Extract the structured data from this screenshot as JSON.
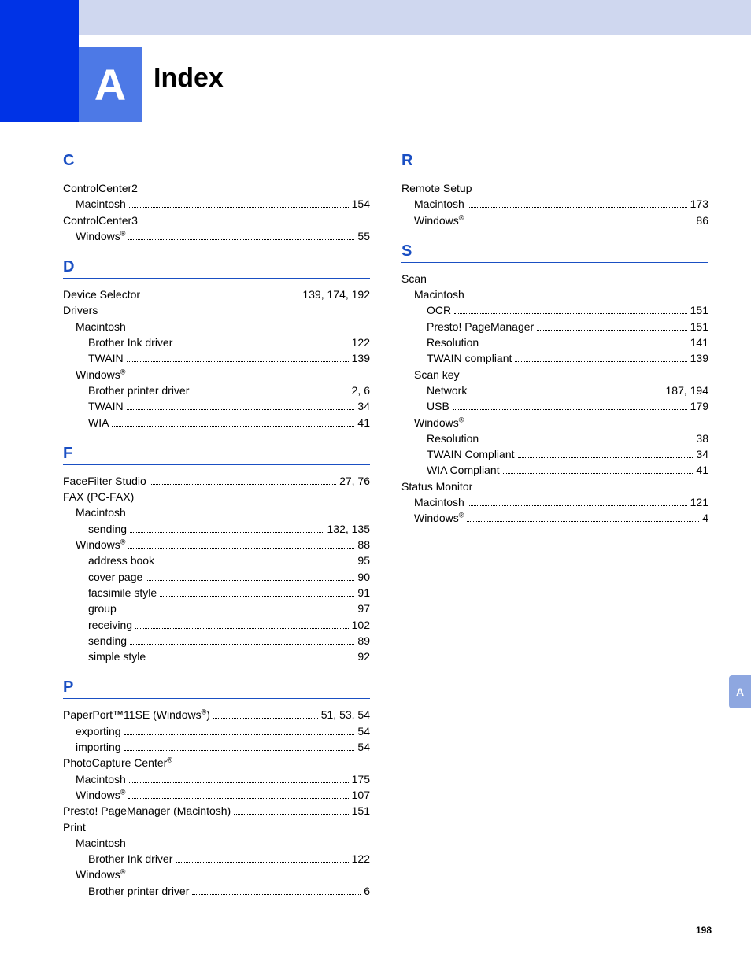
{
  "header": {
    "letter": "A",
    "title": "Index"
  },
  "pageNumber": "198",
  "thumbTab": "A",
  "left": [
    {
      "type": "section",
      "letter": "C"
    },
    {
      "lvl": 0,
      "label": "ControlCenter2",
      "pages": "",
      "noline": true
    },
    {
      "lvl": 1,
      "label": "Macintosh",
      "pages": "154"
    },
    {
      "lvl": 0,
      "label": "ControlCenter3",
      "pages": "",
      "noline": true
    },
    {
      "lvl": 1,
      "label": "Windows",
      "sup": "®",
      "pages": "55"
    },
    {
      "type": "section",
      "letter": "D"
    },
    {
      "lvl": 0,
      "label": "Device Selector",
      "pages": "139, 174, 192"
    },
    {
      "lvl": 0,
      "label": "Drivers",
      "pages": "",
      "noline": true
    },
    {
      "lvl": 1,
      "label": "Macintosh",
      "pages": "",
      "noline": true
    },
    {
      "lvl": 2,
      "label": "Brother Ink driver",
      "pages": "122"
    },
    {
      "lvl": 2,
      "label": "TWAIN",
      "pages": "139"
    },
    {
      "lvl": 1,
      "label": "Windows",
      "sup": "®",
      "pages": "",
      "noline": true
    },
    {
      "lvl": 2,
      "label": "Brother printer driver",
      "pages": "2, 6"
    },
    {
      "lvl": 2,
      "label": "TWAIN",
      "pages": "34"
    },
    {
      "lvl": 2,
      "label": "WIA",
      "pages": "41"
    },
    {
      "type": "section",
      "letter": "F"
    },
    {
      "lvl": 0,
      "label": "FaceFilter Studio",
      "pages": "27, 76"
    },
    {
      "lvl": 0,
      "label": "FAX (PC-FAX)",
      "pages": "",
      "noline": true
    },
    {
      "lvl": 1,
      "label": "Macintosh",
      "pages": "",
      "noline": true
    },
    {
      "lvl": 2,
      "label": "sending",
      "pages": "132, 135"
    },
    {
      "lvl": 1,
      "label": "Windows",
      "sup": "®",
      "pages": "88"
    },
    {
      "lvl": 2,
      "label": "address book",
      "pages": "95"
    },
    {
      "lvl": 2,
      "label": "cover page",
      "pages": "90"
    },
    {
      "lvl": 2,
      "label": "facsimile style",
      "pages": "91"
    },
    {
      "lvl": 2,
      "label": "group",
      "pages": "97"
    },
    {
      "lvl": 2,
      "label": "receiving",
      "pages": "102"
    },
    {
      "lvl": 2,
      "label": "sending",
      "pages": "89"
    },
    {
      "lvl": 2,
      "label": "simple style",
      "pages": "92"
    },
    {
      "type": "section",
      "letter": "P"
    },
    {
      "lvl": 0,
      "label": "PaperPort™11SE (Windows",
      "sup": "®",
      "after": ")",
      "pages": "51, 53, 54"
    },
    {
      "lvl": 1,
      "label": "exporting",
      "pages": "54"
    },
    {
      "lvl": 1,
      "label": "importing",
      "pages": "54"
    },
    {
      "lvl": 0,
      "label": "PhotoCapture Center",
      "sup": "®",
      "pages": "",
      "noline": true
    },
    {
      "lvl": 1,
      "label": "Macintosh",
      "pages": "175"
    },
    {
      "lvl": 1,
      "label": "Windows",
      "sup": "®",
      "pages": "107"
    },
    {
      "lvl": 0,
      "label": "Presto! PageManager (Macintosh)",
      "pages": "151"
    },
    {
      "lvl": 0,
      "label": "Print",
      "pages": "",
      "noline": true
    },
    {
      "lvl": 1,
      "label": "Macintosh",
      "pages": "",
      "noline": true
    },
    {
      "lvl": 2,
      "label": "Brother Ink driver",
      "pages": "122"
    },
    {
      "lvl": 1,
      "label": "Windows",
      "sup": "®",
      "pages": "",
      "noline": true
    },
    {
      "lvl": 2,
      "label": "Brother printer driver",
      "pages": "6"
    }
  ],
  "right": [
    {
      "type": "section",
      "letter": "R"
    },
    {
      "lvl": 0,
      "label": "Remote Setup",
      "pages": "",
      "noline": true
    },
    {
      "lvl": 1,
      "label": "Macintosh",
      "pages": "173"
    },
    {
      "lvl": 1,
      "label": "Windows",
      "sup": "®",
      "pages": "86"
    },
    {
      "type": "section",
      "letter": "S"
    },
    {
      "lvl": 0,
      "label": "Scan",
      "pages": "",
      "noline": true
    },
    {
      "lvl": 1,
      "label": "Macintosh",
      "pages": "",
      "noline": true
    },
    {
      "lvl": 2,
      "label": "OCR",
      "pages": "151"
    },
    {
      "lvl": 2,
      "label": "Presto! PageManager",
      "pages": "151"
    },
    {
      "lvl": 2,
      "label": "Resolution",
      "pages": "141"
    },
    {
      "lvl": 2,
      "label": "TWAIN compliant",
      "pages": "139"
    },
    {
      "lvl": 1,
      "label": "Scan key",
      "pages": "",
      "noline": true
    },
    {
      "lvl": 2,
      "label": "Network",
      "pages": "187, 194"
    },
    {
      "lvl": 2,
      "label": "USB",
      "pages": "179"
    },
    {
      "lvl": 1,
      "label": "Windows",
      "sup": "®",
      "pages": "",
      "noline": true
    },
    {
      "lvl": 2,
      "label": "Resolution",
      "pages": "38"
    },
    {
      "lvl": 2,
      "label": "TWAIN Compliant",
      "pages": "34"
    },
    {
      "lvl": 2,
      "label": "WIA Compliant",
      "pages": "41"
    },
    {
      "lvl": 0,
      "label": "Status Monitor",
      "pages": "",
      "noline": true
    },
    {
      "lvl": 1,
      "label": "Macintosh",
      "pages": "121"
    },
    {
      "lvl": 1,
      "label": "Windows",
      "sup": "®",
      "pages": "4"
    }
  ]
}
